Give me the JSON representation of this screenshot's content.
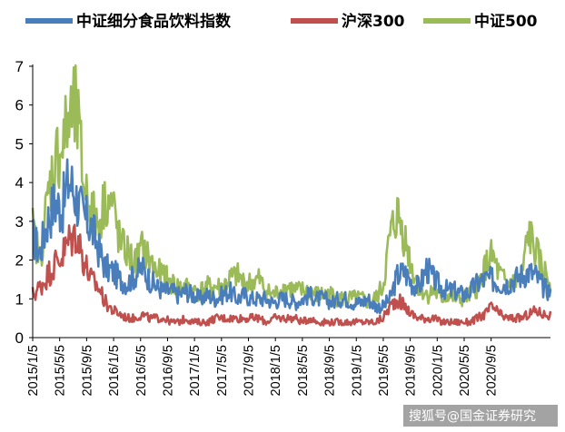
{
  "chart_data": {
    "type": "line",
    "title": "",
    "xlabel": "",
    "ylabel": "",
    "ylim": [
      0,
      7
    ],
    "yticks": [
      "0",
      "1",
      "2",
      "3",
      "4",
      "5",
      "6",
      "7"
    ],
    "x_tick_labels": [
      "2015/1/5",
      "2015/5/5",
      "2015/9/5",
      "2016/1/5",
      "2016/5/5",
      "2016/9/5",
      "2017/1/5",
      "2017/5/5",
      "2017/9/5",
      "2018/1/5",
      "2018/5/5",
      "2018/9/5",
      "2019/1/5",
      "2019/5/5",
      "2019/9/5",
      "2020/1/5",
      "2020/5/5",
      "2020/9/5"
    ],
    "legend_position": "top",
    "series": [
      {
        "name": "中证细分食品饮料指数",
        "color": "#4a7ebb",
        "values": [
          2.6,
          2.2,
          3.0,
          3.5,
          3.3,
          4.1,
          3.6,
          3.1,
          2.9,
          2.3,
          1.8,
          1.7,
          1.5,
          1.4,
          1.6,
          1.8,
          1.5,
          1.3,
          1.2,
          1.2,
          1.1,
          1.2,
          1.1,
          1.0,
          1.1,
          1.0,
          1.1,
          1.2,
          1.0,
          1.1,
          1.0,
          1.0,
          1.0,
          0.9,
          1.0,
          1.0,
          0.9,
          1.0,
          1.1,
          1.0,
          1.0,
          0.9,
          1.0,
          1.0,
          0.9,
          0.9,
          1.0,
          0.8,
          0.8,
          1.0,
          1.6,
          1.7,
          1.4,
          1.3,
          1.8,
          1.5,
          1.3,
          1.2,
          1.2,
          1.1,
          1.2,
          1.4,
          1.5,
          1.5,
          1.4,
          1.4,
          1.5,
          1.6,
          1.7,
          1.6,
          1.3,
          1.2
        ]
      },
      {
        "name": "沪深300",
        "color": "#c0504d",
        "values": [
          1.1,
          1.3,
          1.6,
          1.9,
          2.1,
          2.5,
          2.7,
          2.0,
          1.5,
          1.3,
          0.9,
          0.7,
          0.6,
          0.5,
          0.5,
          0.6,
          0.5,
          0.5,
          0.5,
          0.4,
          0.4,
          0.5,
          0.4,
          0.4,
          0.4,
          0.5,
          0.5,
          0.5,
          0.5,
          0.5,
          0.5,
          0.5,
          0.4,
          0.5,
          0.5,
          0.5,
          0.5,
          0.4,
          0.5,
          0.4,
          0.4,
          0.4,
          0.4,
          0.4,
          0.4,
          0.4,
          0.4,
          0.4,
          0.5,
          0.8,
          1.0,
          0.8,
          0.6,
          0.5,
          0.5,
          0.5,
          0.4,
          0.4,
          0.4,
          0.4,
          0.4,
          0.5,
          0.6,
          0.8,
          0.6,
          0.5,
          0.5,
          0.5,
          0.6,
          0.7,
          0.6,
          0.6
        ]
      },
      {
        "name": "中证500",
        "color": "#9bbb59",
        "values": [
          2.8,
          2.0,
          3.5,
          4.6,
          4.9,
          5.6,
          5.8,
          4.0,
          3.3,
          2.9,
          3.6,
          3.4,
          2.4,
          2.2,
          1.9,
          2.3,
          2.0,
          1.7,
          1.6,
          1.4,
          1.3,
          1.3,
          1.2,
          1.2,
          1.3,
          1.3,
          1.3,
          1.5,
          1.6,
          1.4,
          1.4,
          1.5,
          1.2,
          1.1,
          1.2,
          1.3,
          1.2,
          1.2,
          1.2,
          1.1,
          1.1,
          1.1,
          1.0,
          1.0,
          1.0,
          1.0,
          0.9,
          1.0,
          1.3,
          2.6,
          3.2,
          2.6,
          1.8,
          1.3,
          1.1,
          1.2,
          1.0,
          1.1,
          1.0,
          1.0,
          1.1,
          1.3,
          1.8,
          2.1,
          1.6,
          1.4,
          1.4,
          1.5,
          2.7,
          2.2,
          1.7,
          1.5
        ]
      }
    ]
  },
  "watermark": "搜狐号@国金证券研究"
}
